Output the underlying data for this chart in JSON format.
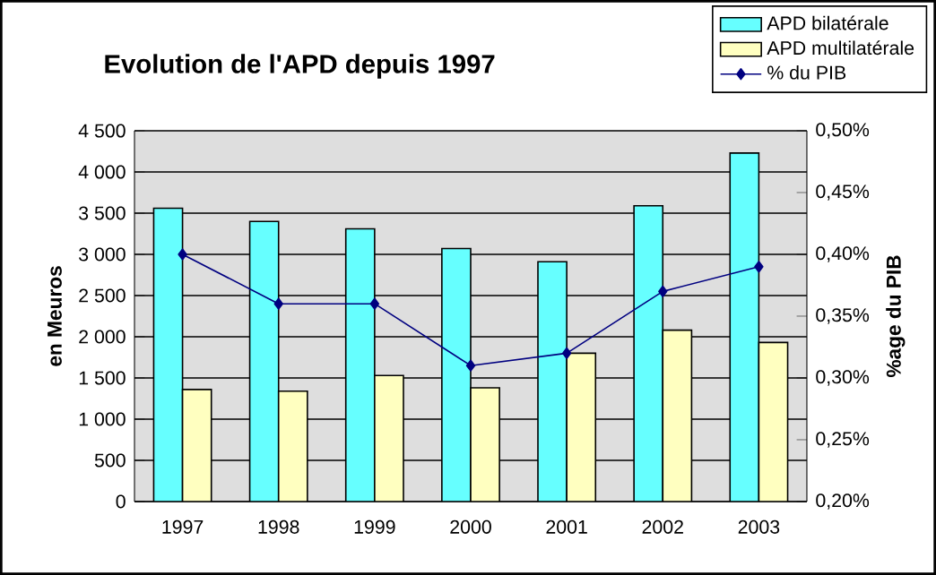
{
  "chart_data": {
    "type": "bar",
    "title": "Evolution de l'APD depuis 1997",
    "ylabel": "en Meuros",
    "y2label": "%age du PIB",
    "categories": [
      "1997",
      "1998",
      "1999",
      "2000",
      "2001",
      "2002",
      "2003"
    ],
    "series": [
      {
        "name": "APD bilatérale",
        "color": "#66ffff",
        "values": [
          3560,
          3400,
          3310,
          3070,
          2910,
          3590,
          4230
        ]
      },
      {
        "name": "APD multilatérale",
        "color": "#ffffc0",
        "values": [
          1360,
          1340,
          1530,
          1380,
          1800,
          2080,
          1930
        ]
      },
      {
        "name": "% du PIB",
        "type": "line",
        "axis": "y2",
        "color": "#000080",
        "marker": "diamond",
        "values": [
          0.4,
          0.36,
          0.36,
          0.31,
          0.32,
          0.37,
          0.39
        ]
      }
    ],
    "ylim": [
      0,
      4500
    ],
    "yticks": [
      0,
      500,
      {
        "value": 1000,
        "label": "1 000"
      },
      {
        "value": 1500,
        "label": "1 500"
      },
      {
        "value": 2000,
        "label": "2 000"
      },
      {
        "value": 2500,
        "label": "2 500"
      },
      {
        "value": 3000,
        "label": "3 000"
      },
      {
        "value": 3500,
        "label": "3 500"
      },
      {
        "value": 4000,
        "label": "4 000"
      },
      {
        "value": 4500,
        "label": "4 500"
      }
    ],
    "y2lim": [
      0.2,
      0.5
    ],
    "y2ticks": [
      {
        "value": 0.2,
        "label": "0,20%"
      },
      {
        "value": 0.25,
        "label": "0,25%"
      },
      {
        "value": 0.3,
        "label": "0,30%"
      },
      {
        "value": 0.35,
        "label": "0,35%"
      },
      {
        "value": 0.4,
        "label": "0,40%"
      },
      {
        "value": 0.45,
        "label": "0,45%"
      },
      {
        "value": 0.5,
        "label": "0,50%"
      }
    ],
    "grid": "y",
    "legend": "top right"
  }
}
